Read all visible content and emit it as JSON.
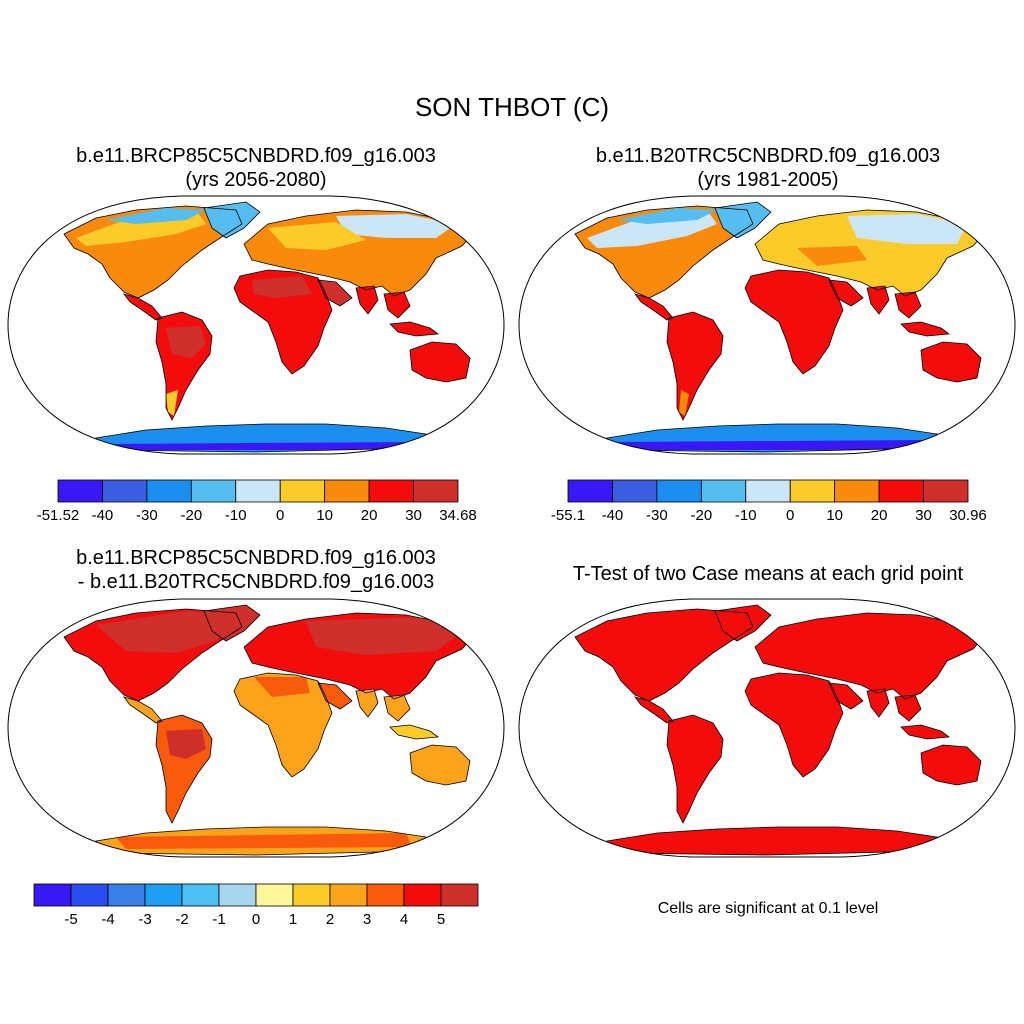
{
  "figure": {
    "title": "SON THBOT (C)"
  },
  "panels": [
    {
      "id": "case1",
      "title_line1": "b.e11.BRCP85C5CNBDRD.f09_g16.003",
      "title_line2": "(yrs 2056-2080)",
      "colorbar": {
        "colors": [
          "#3a17f5",
          "#3b5de0",
          "#1b8ff0",
          "#56bdf0",
          "#cbe6f7",
          "#fbcb2a",
          "#f98a0c",
          "#f30c0c",
          "#d0302c"
        ],
        "labels": [
          "-51.52",
          "-40",
          "-30",
          "-20",
          "-10",
          "0",
          "10",
          "20",
          "30",
          "34.68"
        ]
      }
    },
    {
      "id": "case2",
      "title_line1": "b.e11.B20TRC5CNBDRD.f09_g16.003",
      "title_line2": "(yrs 1981-2005)",
      "colorbar": {
        "colors": [
          "#3a17f5",
          "#3b5de0",
          "#1b8ff0",
          "#56bdf0",
          "#cbe6f7",
          "#fbcb2a",
          "#f98a0c",
          "#f30c0c",
          "#d0302c"
        ],
        "labels": [
          "-55.1",
          "-40",
          "-30",
          "-20",
          "-10",
          "0",
          "10",
          "20",
          "30",
          "30.96"
        ]
      }
    },
    {
      "id": "diff",
      "title_line1": "b.e11.BRCP85C5CNBDRD.f09_g16.003",
      "title_line2": "- b.e11.B20TRC5CNBDRD.f09_g16.003",
      "colorbar": {
        "colors": [
          "#3a17f5",
          "#2a4df0",
          "#3a7ee8",
          "#1ea0f2",
          "#4cc0f2",
          "#a8d6ee",
          "#fff59a",
          "#fbcb2a",
          "#fba31a",
          "#f95a0c",
          "#f30c0c",
          "#d0302c"
        ],
        "labels": [
          "-5",
          "-4",
          "-3",
          "-2",
          "-1",
          "0",
          "1",
          "2",
          "3",
          "4",
          "5"
        ]
      }
    },
    {
      "id": "ttest",
      "title_line1": "T-Test of two Case means at each grid point",
      "note": "Cells are significant at 0.1 level"
    }
  ]
}
